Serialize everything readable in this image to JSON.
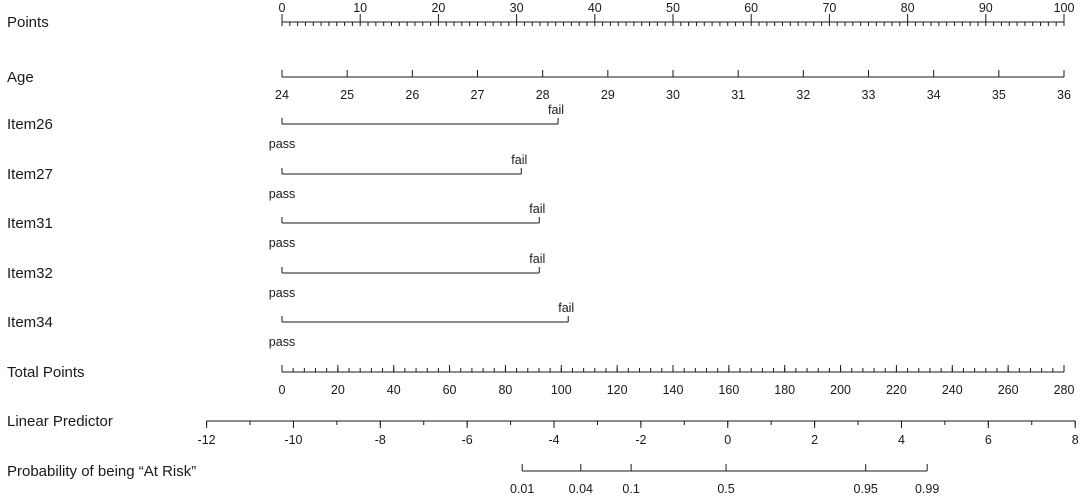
{
  "chart_data": {
    "type": "nomogram",
    "rows": [
      {
        "label": "Points",
        "kind": "axis",
        "min": 0,
        "max": 100,
        "major": [
          0,
          10,
          20,
          30,
          40,
          50,
          60,
          70,
          80,
          90,
          100
        ],
        "minor_step": 1,
        "labels_above": true
      },
      {
        "label": "Age",
        "kind": "axis",
        "major": [
          24,
          25,
          26,
          27,
          28,
          29,
          30,
          31,
          32,
          33,
          34,
          35,
          36
        ],
        "points_range": [
          0,
          100
        ],
        "labels_above": false
      },
      {
        "label": "Item26",
        "kind": "binary",
        "low": "pass",
        "high": "fail",
        "high_points": 35.3
      },
      {
        "label": "Item27",
        "kind": "binary",
        "low": "pass",
        "high": "fail",
        "high_points": 30.6
      },
      {
        "label": "Item31",
        "kind": "binary",
        "low": "pass",
        "high": "fail",
        "high_points": 32.9
      },
      {
        "label": "Item32",
        "kind": "binary",
        "low": "pass",
        "high": "fail",
        "high_points": 32.9
      },
      {
        "label": "Item34",
        "kind": "binary",
        "low": "pass",
        "high": "fail",
        "high_points": 36.6
      },
      {
        "label": "Total Points",
        "kind": "axis",
        "min": 0,
        "max": 280,
        "major": [
          0,
          20,
          40,
          60,
          80,
          100,
          120,
          140,
          160,
          180,
          200,
          220,
          240,
          260,
          280
        ],
        "minor_step": 4,
        "labels_above": false
      },
      {
        "label": "Linear Predictor",
        "kind": "axis",
        "major": [
          -12,
          -10,
          -8,
          -6,
          -4,
          -2,
          0,
          2,
          4,
          6,
          8
        ],
        "total_points_range": [
          -27,
          284
        ],
        "labels_above": false
      },
      {
        "label": "Probability of being “At Risk”",
        "kind": "axis",
        "major": [
          "0.01",
          "0.04",
          "0.1",
          "0.5",
          "0.95",
          "0.99"
        ],
        "total_points_at_major": [
          86,
          107,
          125,
          159,
          209,
          231
        ],
        "labels_above": false
      }
    ]
  }
}
